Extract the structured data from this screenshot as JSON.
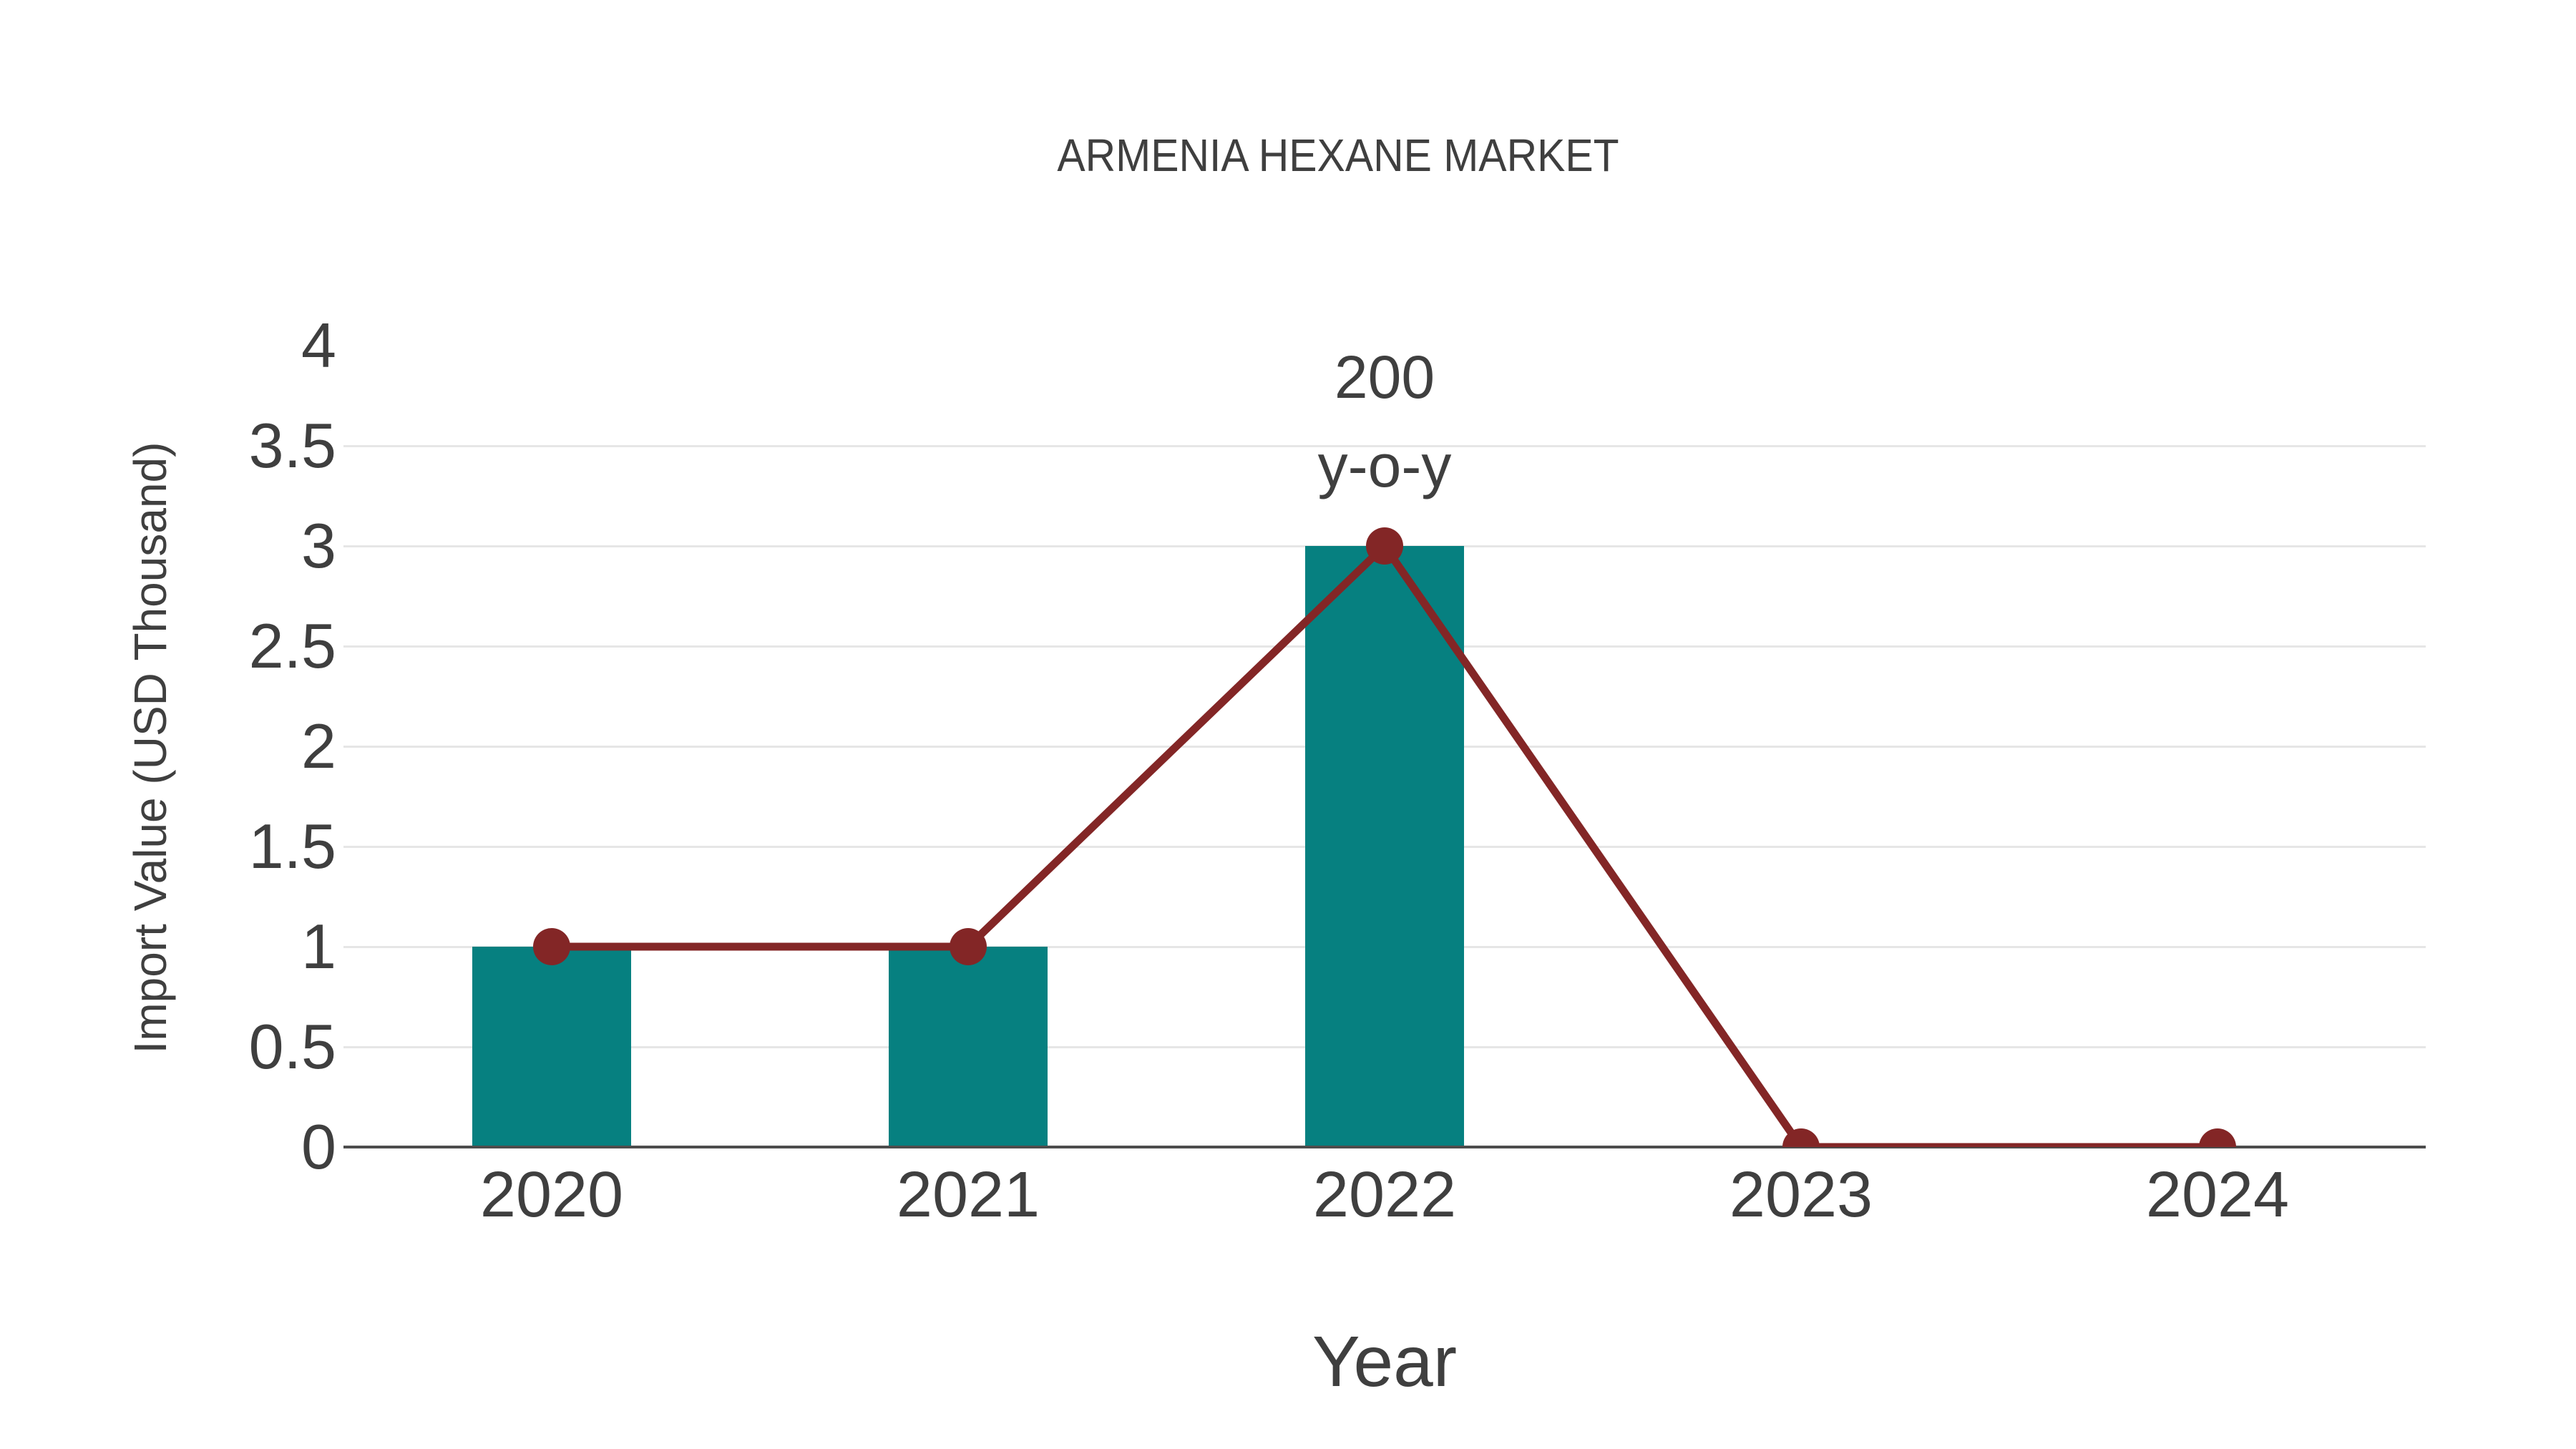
{
  "title": "ARMENIA HEXANE MARKET",
  "colors": {
    "bar": "#068080",
    "line": "#832626",
    "text": "#3f3f3f",
    "grid": "#e6e6e6",
    "axis": "#4d4d4d"
  },
  "annotation": {
    "line1": "200",
    "line2": "y-o-y",
    "attached_to": "2022"
  },
  "chart_data": {
    "type": "bar",
    "title": "ARMENIA HEXANE MARKET",
    "xlabel": "Year",
    "ylabel": "Import Value (USD Thousand)",
    "categories": [
      "2020",
      "2021",
      "2022",
      "2023",
      "2024"
    ],
    "series": [
      {
        "name": "Import Value bars",
        "type": "bar",
        "values": [
          1,
          1,
          3,
          0,
          0
        ]
      },
      {
        "name": "Import Value trend line",
        "type": "line",
        "values": [
          1,
          1,
          3,
          0,
          0
        ]
      }
    ],
    "ylim": [
      0,
      4
    ],
    "yticks": [
      0,
      0.5,
      1,
      1.5,
      2,
      2.5,
      3,
      3.5,
      4
    ],
    "grid": "horizontal",
    "legend": "none",
    "annotations": [
      {
        "category": "2022",
        "text": "200 y-o-y"
      }
    ]
  }
}
